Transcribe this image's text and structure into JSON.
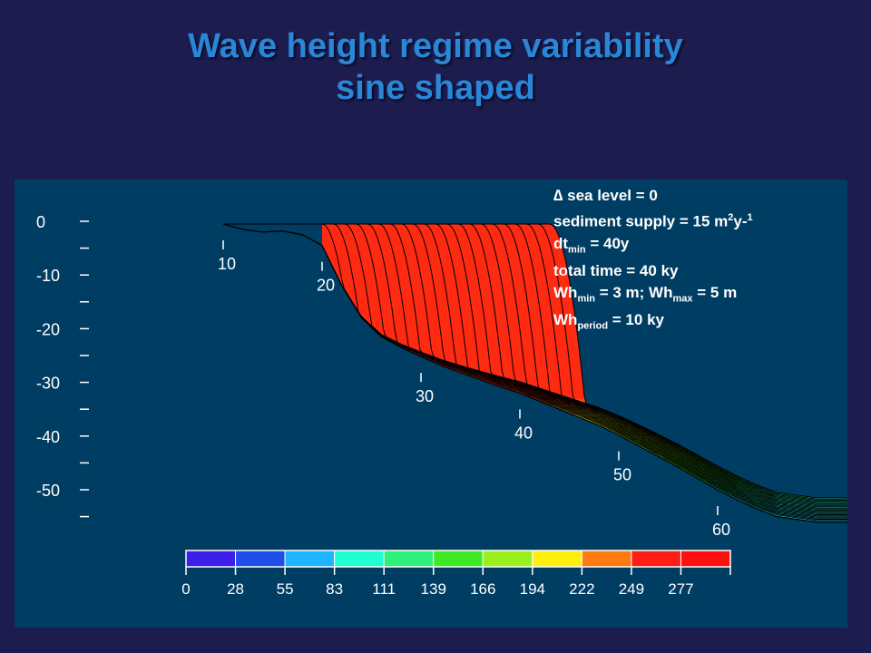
{
  "slide": {
    "title_line1": "Wave height regime variability",
    "title_line2": "sine shaped"
  },
  "info": {
    "sea_level": "∆ sea level = 0",
    "supply_prefix": "sediment supply = 15 m",
    "supply_sup1": "2",
    "supply_mid": "y-",
    "supply_sup2": "1",
    "dt_prefix": "dt",
    "dt_sub": "min",
    "dt_suffix": " = 40y",
    "total_time": "total time = 40 ky",
    "wh_prefix": "Wh",
    "wh_min_sub": "min",
    "wh_mid": " = 3 m; Wh",
    "wh_max_sub": "max",
    "wh_suffix": " = 5 m",
    "whp_prefix": "Wh",
    "whp_sub": "period",
    "whp_suffix": " = 10 ky"
  },
  "chart_data": {
    "type": "area",
    "title": "",
    "ylabel": "",
    "xlabel": "",
    "y_ticks": [
      "0",
      "-10",
      "-20",
      "-30",
      "-40",
      "-50"
    ],
    "ylim": [
      -56,
      2
    ],
    "x_tick_labels": [
      "10",
      "20",
      "30",
      "40",
      "50",
      "60"
    ],
    "profile_count": 21,
    "shelf_depth": -0.5,
    "initial_profile": {
      "x": [
        0,
        2,
        4,
        6,
        8,
        10,
        12,
        14,
        16,
        18,
        20,
        22,
        24,
        26,
        28,
        30,
        32,
        34,
        36,
        38,
        40,
        42,
        44,
        46,
        48,
        50,
        52,
        54,
        56,
        58,
        60,
        62,
        64,
        66
      ],
      "depth": [
        -0.5,
        -1.5,
        -2.0,
        -1.8,
        -2.5,
        -4.5,
        -12,
        -18,
        -21.5,
        -23.5,
        -25.2,
        -26.8,
        -28.2,
        -29.5,
        -30.8,
        -32,
        -33.5,
        -35,
        -36.5,
        -38,
        -39.8,
        -41.8,
        -43.8,
        -45.8,
        -47.9,
        -50,
        -51.9,
        -53.6,
        -55,
        -55.5,
        -56,
        -56,
        -56,
        -56
      ]
    },
    "first_slope_start_x": 10,
    "last_slope_start_x": 33,
    "colorbar": {
      "ticks": [
        "0",
        "28",
        "55",
        "83",
        "111",
        "139",
        "166",
        "194",
        "222",
        "249",
        "277"
      ],
      "colors": [
        "#3b1ee8",
        "#1f4fe8",
        "#1fb4ff",
        "#1fffd2",
        "#2ff07a",
        "#3fea25",
        "#9af01e",
        "#ffee10",
        "#ff7a10",
        "#ff1e14",
        "#ff1010"
      ]
    }
  }
}
